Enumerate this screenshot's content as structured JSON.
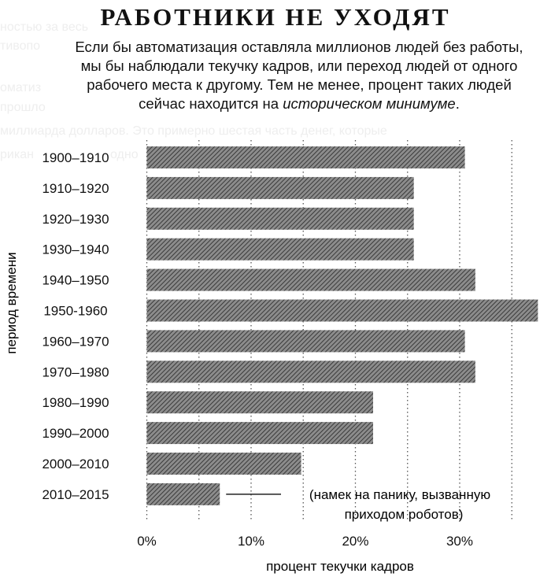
{
  "background_text": [
    "ностью за весь",
    "тивопо",
    "оматиз",
    "прошло",
    "миллиарда долларов. Это примерно шестая часть денег, которые",
    "рикан",
    "одно"
  ],
  "header": {
    "title": "РАБОТНИКИ НЕ УХОДЯТ",
    "subtitle_main": "Если бы автоматизация оставляла миллионов людей без работы, мы бы наблюдали текучку кадров, или переход людей от одного рабочего места к другому. Тем не менее, процент таких людей сейчас находится на ",
    "subtitle_emph": "историческом минимуме",
    "subtitle_end": "."
  },
  "colors": {
    "bar_fill": "#8c8c8c",
    "bar_hatch": "#3a3a3a",
    "grid": "#555555",
    "text": "#111111",
    "background": "#ffffff"
  },
  "chart_data": {
    "type": "bar",
    "orientation": "horizontal",
    "categories": [
      "1900–1910",
      "1910–1920",
      "1920–1930",
      "1930–1940",
      "1940–1950",
      "1950-1960",
      "1960–1970",
      "1970–1980",
      "1980–1990",
      "1990–2000",
      "2000–2010",
      "2010–2015"
    ],
    "values": [
      30.5,
      25.6,
      25.6,
      25.6,
      31.5,
      37.5,
      30.5,
      31.5,
      21.7,
      21.7,
      14.8,
      7.0
    ],
    "xlim": [
      -2,
      37.7
    ],
    "xticks": [
      0,
      10,
      20,
      30
    ],
    "xtick_labels": [
      "0%",
      "10%",
      "20%",
      "30%"
    ],
    "xlabel": "процент текучки кадров",
    "ylabel": "период времени",
    "grid": "vertical dotted",
    "gridlines_at": [
      0,
      5,
      10,
      15,
      20,
      25,
      30,
      35
    ],
    "annotation": {
      "category": "2010–2015",
      "line1": "(намек на панику, вызванную",
      "line2": "приходом роботов)"
    }
  }
}
